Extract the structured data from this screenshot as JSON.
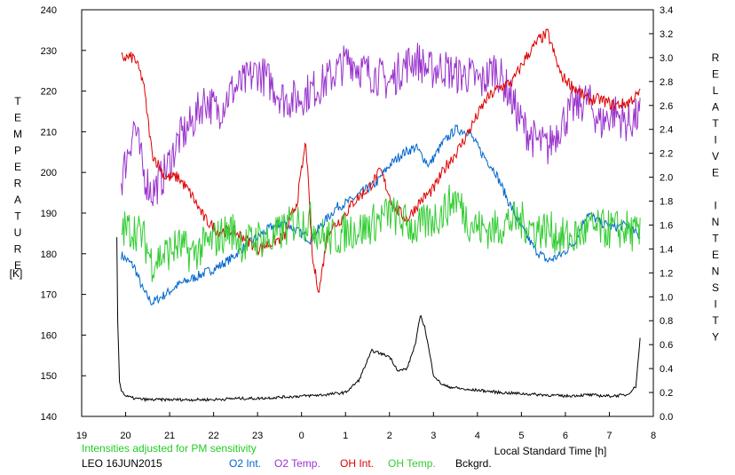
{
  "chart_data": {
    "type": "line",
    "note_text": "Intensities adjusted for PM sensitivity",
    "station_date": "LEO 16JUN2015",
    "xlabel": "Local Standard Time [h]",
    "ylabel_left": "TEMPERATURE",
    "ylabel_left_unit": "[K]",
    "ylabel_right": "RELATIVE INTENSITY",
    "x_ticks": [
      "19",
      "20",
      "21",
      "22",
      "23",
      "0",
      "1",
      "2",
      "3",
      "4",
      "5",
      "6",
      "7",
      "8"
    ],
    "xlim": [
      19,
      32
    ],
    "ylim_left": [
      140,
      240
    ],
    "y_ticks_left": [
      "140",
      "150",
      "160",
      "170",
      "180",
      "190",
      "200",
      "210",
      "220",
      "230",
      "240"
    ],
    "ylim_right": [
      0.0,
      3.4
    ],
    "y_ticks_right": [
      "0.0",
      "0.2",
      "0.4",
      "0.6",
      "0.8",
      "1.0",
      "1.2",
      "1.4",
      "1.6",
      "1.8",
      "2.0",
      "2.2",
      "2.4",
      "2.6",
      "2.8",
      "3.0",
      "3.2",
      "3.4"
    ],
    "grid": false,
    "series": [
      {
        "name": "O2 Int.",
        "axis": "right",
        "color": "#0066cc",
        "noise": 0.04,
        "x": [
          19.9,
          20.2,
          20.4,
          20.6,
          20.9,
          21.2,
          21.5,
          21.8,
          22.1,
          22.4,
          22.7,
          23.0,
          23.3,
          23.6,
          23.9,
          24.2,
          24.5,
          24.8,
          25.1,
          25.4,
          25.7,
          26.0,
          26.3,
          26.6,
          26.9,
          27.2,
          27.5,
          27.8,
          28.1,
          28.4,
          28.7,
          29.0,
          29.3,
          29.6,
          29.9,
          30.2,
          30.5,
          30.8,
          31.1,
          31.4,
          31.7
        ],
        "values": [
          1.35,
          1.25,
          1.05,
          0.95,
          1.02,
          1.1,
          1.15,
          1.2,
          1.25,
          1.32,
          1.42,
          1.5,
          1.58,
          1.62,
          1.55,
          1.48,
          1.62,
          1.75,
          1.8,
          1.88,
          1.95,
          2.1,
          2.2,
          2.25,
          2.1,
          2.28,
          2.4,
          2.38,
          2.2,
          2.05,
          1.8,
          1.58,
          1.4,
          1.3,
          1.35,
          1.45,
          1.7,
          1.62,
          1.58,
          1.6,
          1.5
        ]
      },
      {
        "name": "O2 Temp.",
        "axis": "left",
        "color": "#9933cc",
        "noise": 5,
        "x": [
          19.9,
          20.2,
          20.4,
          20.6,
          20.9,
          21.2,
          21.5,
          21.8,
          22.1,
          22.4,
          22.7,
          23.0,
          23.3,
          23.6,
          23.9,
          24.2,
          24.5,
          24.8,
          25.1,
          25.4,
          25.7,
          26.0,
          26.3,
          26.6,
          26.9,
          27.2,
          27.5,
          27.8,
          28.1,
          28.4,
          28.7,
          29.0,
          29.3,
          29.6,
          29.9,
          30.2,
          30.5,
          30.8,
          31.1,
          31.4,
          31.7
        ],
        "values": [
          198,
          212,
          200,
          195,
          200,
          208,
          212,
          218,
          215,
          220,
          222,
          225,
          222,
          218,
          218,
          220,
          222,
          225,
          228,
          225,
          224,
          222,
          226,
          228,
          225,
          226,
          224,
          224,
          222,
          226,
          220,
          212,
          208,
          206,
          212,
          216,
          218,
          212,
          215,
          212,
          214
        ]
      },
      {
        "name": "OH Int.",
        "axis": "right",
        "color": "#dd0000",
        "noise": 0.05,
        "x": [
          19.9,
          20.2,
          20.4,
          20.6,
          20.9,
          21.2,
          21.5,
          21.8,
          22.1,
          22.4,
          22.7,
          23.0,
          23.3,
          23.6,
          23.9,
          24.1,
          24.25,
          24.4,
          24.6,
          24.9,
          25.2,
          25.5,
          25.8,
          26.1,
          26.4,
          26.7,
          27.0,
          27.3,
          27.6,
          27.9,
          28.2,
          28.5,
          28.8,
          29.1,
          29.4,
          29.6,
          29.9,
          30.2,
          30.5,
          30.8,
          31.1,
          31.4,
          31.7
        ],
        "values": [
          3.0,
          3.0,
          2.8,
          2.2,
          2.0,
          2.0,
          1.85,
          1.65,
          1.55,
          1.55,
          1.5,
          1.4,
          1.45,
          1.5,
          1.8,
          2.3,
          1.3,
          1.05,
          1.55,
          1.65,
          1.8,
          1.9,
          2.05,
          1.75,
          1.65,
          1.8,
          1.9,
          2.1,
          2.25,
          2.45,
          2.65,
          2.75,
          2.8,
          3.0,
          3.15,
          3.2,
          2.85,
          2.75,
          2.65,
          2.65,
          2.6,
          2.62,
          2.7
        ]
      },
      {
        "name": "OH Temp.",
        "axis": "left",
        "color": "#33cc33",
        "noise": 5,
        "x": [
          19.9,
          20.2,
          20.4,
          20.6,
          20.9,
          21.2,
          21.5,
          21.8,
          22.1,
          22.4,
          22.7,
          23.0,
          23.3,
          23.6,
          23.9,
          24.2,
          24.5,
          24.8,
          25.1,
          25.4,
          25.7,
          26.0,
          26.3,
          26.6,
          26.9,
          27.2,
          27.5,
          27.8,
          28.1,
          28.4,
          28.7,
          29.0,
          29.3,
          29.6,
          29.9,
          30.2,
          30.5,
          30.8,
          31.1,
          31.4,
          31.7
        ],
        "values": [
          186,
          186,
          184,
          178,
          180,
          182,
          180,
          182,
          184,
          186,
          182,
          184,
          183,
          186,
          188,
          188,
          184,
          184,
          186,
          186,
          188,
          190,
          188,
          186,
          188,
          190,
          194,
          188,
          186,
          186,
          188,
          188,
          186,
          186,
          184,
          184,
          186,
          186,
          186,
          186,
          184
        ]
      },
      {
        "name": "Bckgrd.",
        "axis": "right",
        "color": "#000000",
        "noise": 0.012,
        "x": [
          19.8,
          19.82,
          19.86,
          19.9,
          20.0,
          20.2,
          20.5,
          21.0,
          21.5,
          22.0,
          22.5,
          23.0,
          23.5,
          24.0,
          24.5,
          25.0,
          25.3,
          25.6,
          26.0,
          26.2,
          26.4,
          26.6,
          26.7,
          26.8,
          26.9,
          27.0,
          27.15,
          27.3,
          27.5,
          27.8,
          28.0,
          28.5,
          29.0,
          29.5,
          30.0,
          30.5,
          31.0,
          31.4,
          31.6,
          31.7
        ],
        "values": [
          1.5,
          0.8,
          0.3,
          0.22,
          0.17,
          0.15,
          0.14,
          0.14,
          0.14,
          0.14,
          0.15,
          0.15,
          0.16,
          0.17,
          0.18,
          0.2,
          0.3,
          0.55,
          0.5,
          0.38,
          0.4,
          0.62,
          0.85,
          0.75,
          0.55,
          0.35,
          0.28,
          0.25,
          0.24,
          0.22,
          0.22,
          0.2,
          0.19,
          0.18,
          0.17,
          0.18,
          0.17,
          0.18,
          0.25,
          0.65
        ]
      }
    ]
  }
}
